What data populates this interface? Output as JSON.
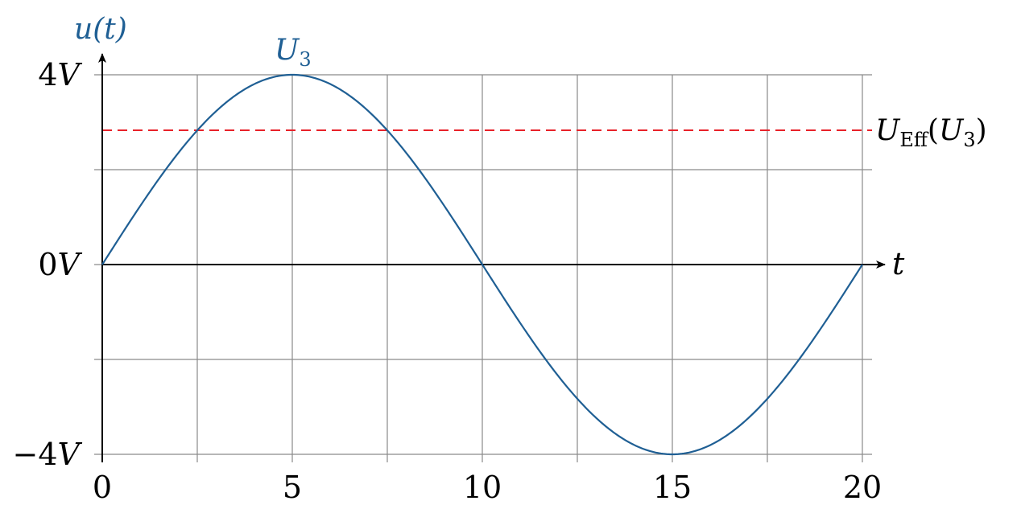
{
  "chart_data": {
    "type": "line",
    "x_axis": {
      "label": "t",
      "range": [
        0,
        20
      ],
      "ticks": [
        0,
        5,
        10,
        15,
        20
      ],
      "tick_labels": [
        "0",
        "5",
        "10",
        "15",
        "20"
      ],
      "minor_grid_step": 2.5
    },
    "y_axis": {
      "label_symbol": "u",
      "label_arg": "(t)",
      "range": [
        -4,
        4
      ],
      "ticks": [
        -4,
        0,
        4
      ],
      "tick_labels": [
        {
          "value": 4,
          "sign": "",
          "num": "4",
          "unit": "V"
        },
        {
          "value": 0,
          "sign": "",
          "num": "0",
          "unit": "V"
        },
        {
          "value": -4,
          "sign": "−",
          "num": "4",
          "unit": "V"
        }
      ],
      "grid_lines": [
        -4,
        -2,
        0,
        2,
        4
      ]
    },
    "grid": true,
    "series": [
      {
        "label_symbol": "U",
        "label_sub": "3",
        "label_at_x": 5,
        "color": "#1f5f94",
        "function": "sine",
        "amplitude": 4,
        "period": 20,
        "x": [
          0,
          1,
          2,
          2.5,
          3,
          4,
          5,
          6,
          7,
          7.5,
          8,
          9,
          10,
          11,
          12,
          12.5,
          13,
          14,
          15,
          16,
          17,
          17.5,
          18,
          19,
          20
        ],
        "y": [
          0,
          1.24,
          2.35,
          2.83,
          3.24,
          3.8,
          4,
          3.8,
          3.24,
          2.83,
          2.35,
          1.24,
          0,
          -1.24,
          -2.35,
          -2.83,
          -3.24,
          -3.8,
          -4,
          -3.8,
          -3.24,
          -2.83,
          -2.35,
          -1.24,
          0
        ]
      }
    ],
    "reference_lines": [
      {
        "value": 2.83,
        "style": "dashed",
        "color": "#e8222a",
        "label_symbol": "U",
        "label_sub": "Eff",
        "label_arg_open": "(",
        "label_arg_symbol": "U",
        "label_arg_sub": "3",
        "label_arg_close": ")"
      }
    ]
  }
}
